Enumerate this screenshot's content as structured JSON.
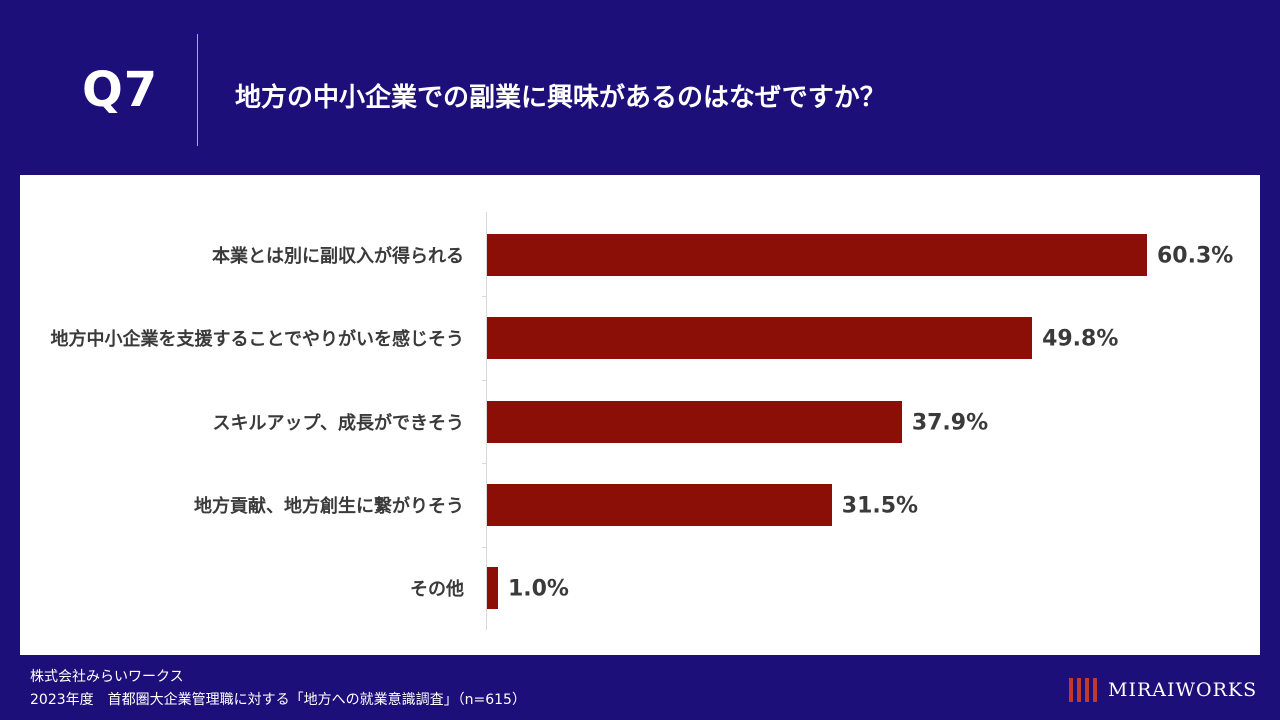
{
  "header": {
    "question_number": "Q7",
    "title": "地方の中小企業での副業に興味があるのはなぜですか？"
  },
  "chart_data": {
    "type": "bar",
    "orientation": "horizontal",
    "categories": [
      "本業とは別に副収入が得られる",
      "地方中小企業を支援することでやりがいを感じそう",
      "スキルアップ、成長ができそう",
      "地方貢献、地方創生に繋がりそう",
      "その他"
    ],
    "values": [
      60.3,
      49.8,
      37.9,
      31.5,
      1.0
    ],
    "value_labels": [
      "60.3%",
      "49.8%",
      "37.9%",
      "31.5%",
      "1.0%"
    ],
    "xlim": [
      0,
      60.3
    ],
    "bar_color": "#8b0e07",
    "grid": false
  },
  "footer": {
    "company": "株式会社みらいワークス",
    "source": "2023年度　首都圏大企業管理職に対する「地方への就業意識調査」（n=615）",
    "logo_text": "MIRAIWORKS"
  },
  "colors": {
    "background": "#1c0f7a",
    "panel": "#ffffff",
    "bar": "#8b0e07",
    "text_dark": "#3a3a3a"
  }
}
